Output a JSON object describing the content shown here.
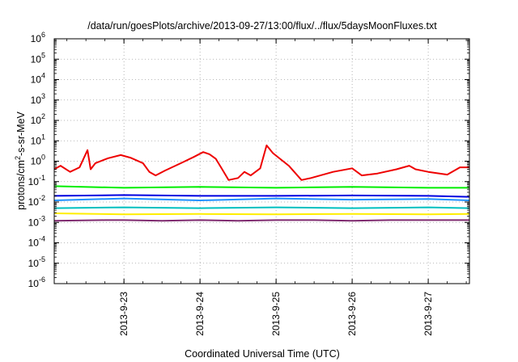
{
  "chart_data": {
    "type": "line",
    "title": "/data/run/goesPlots/archive/2013-09-27/13:00/flux/../flux/5daysMoonFluxes.txt",
    "xlabel": "Coordinated Universal Time (UTC)",
    "ylabel": {
      "base": "protons/cm",
      "sup": "2",
      "rest": "-s-sr-MeV"
    },
    "yscale": "log",
    "ylim": [
      1e-06,
      1000000.0
    ],
    "xlim": [
      "2013-09-22 02:00",
      "2013-09-27 13:00"
    ],
    "x_ticks": [
      "2013-9-23",
      "2013-9-24",
      "2013-9-25",
      "2013-9-26",
      "2013-9-27"
    ],
    "y_ticks": [
      {
        "base": "10",
        "exp": "6"
      },
      {
        "base": "10",
        "exp": "5"
      },
      {
        "base": "10",
        "exp": "4"
      },
      {
        "base": "10",
        "exp": "3"
      },
      {
        "base": "10",
        "exp": "2"
      },
      {
        "base": "10",
        "exp": "1"
      },
      {
        "base": "10",
        "exp": "0"
      },
      {
        "base": "10",
        "exp": "-1"
      },
      {
        "base": "10",
        "exp": "-2"
      },
      {
        "base": "10",
        "exp": "-3"
      },
      {
        "base": "10",
        "exp": "-4"
      },
      {
        "base": "10",
        "exp": "-5"
      },
      {
        "base": "10",
        "exp": "-6"
      }
    ],
    "grid": true,
    "series": [
      {
        "color": "#7f2a6f",
        "values": [
          [
            "2013-09-22 02:00",
            0.0012
          ],
          [
            "2013-09-22 18:00",
            0.0013
          ],
          [
            "2013-09-23 00:00",
            0.0013
          ],
          [
            "2013-09-23 12:00",
            0.0012
          ],
          [
            "2013-09-24 00:00",
            0.0013
          ],
          [
            "2013-09-24 12:00",
            0.0012
          ],
          [
            "2013-09-25 00:00",
            0.0013
          ],
          [
            "2013-09-25 12:00",
            0.0013
          ],
          [
            "2013-09-26 00:00",
            0.0012
          ],
          [
            "2013-09-26 12:00",
            0.0013
          ],
          [
            "2013-09-27 00:00",
            0.0013
          ],
          [
            "2013-09-27 13:00",
            0.0013
          ]
        ]
      },
      {
        "color": "#ffee00",
        "values": [
          [
            "2013-09-22 02:00",
            0.0028
          ],
          [
            "2013-09-23 00:00",
            0.0025
          ],
          [
            "2013-09-24 00:00",
            0.0026
          ],
          [
            "2013-09-25 00:00",
            0.0025
          ],
          [
            "2013-09-26 00:00",
            0.0026
          ],
          [
            "2013-09-27 00:00",
            0.0025
          ],
          [
            "2013-09-27 13:00",
            0.0026
          ]
        ]
      },
      {
        "color": "#00c0c0",
        "values": [
          [
            "2013-09-22 02:00",
            0.005
          ],
          [
            "2013-09-23 00:00",
            0.0055
          ],
          [
            "2013-09-24 00:00",
            0.005
          ],
          [
            "2013-09-25 00:00",
            0.0055
          ],
          [
            "2013-09-26 00:00",
            0.005
          ],
          [
            "2013-09-27 00:00",
            0.0055
          ],
          [
            "2013-09-27 13:00",
            0.005
          ]
        ]
      },
      {
        "color": "#1e90ff",
        "values": [
          [
            "2013-09-22 02:00",
            0.012
          ],
          [
            "2013-09-23 00:00",
            0.015
          ],
          [
            "2013-09-24 00:00",
            0.012
          ],
          [
            "2013-09-25 00:00",
            0.015
          ],
          [
            "2013-09-26 00:00",
            0.013
          ],
          [
            "2013-09-27 00:00",
            0.014
          ],
          [
            "2013-09-27 13:00",
            0.012
          ]
        ]
      },
      {
        "color": "#0000e0",
        "values": [
          [
            "2013-09-22 02:00",
            0.02
          ],
          [
            "2013-09-23 00:00",
            0.022
          ],
          [
            "2013-09-24 00:00",
            0.02
          ],
          [
            "2013-09-25 00:00",
            0.02
          ],
          [
            "2013-09-26 00:00",
            0.021
          ],
          [
            "2013-09-27 00:00",
            0.02
          ],
          [
            "2013-09-27 13:00",
            0.018
          ]
        ]
      },
      {
        "color": "#00ee00",
        "values": [
          [
            "2013-09-22 02:00",
            0.06
          ],
          [
            "2013-09-23 00:00",
            0.05
          ],
          [
            "2013-09-24 00:00",
            0.055
          ],
          [
            "2013-09-25 00:00",
            0.05
          ],
          [
            "2013-09-26 00:00",
            0.055
          ],
          [
            "2013-09-27 00:00",
            0.05
          ],
          [
            "2013-09-27 13:00",
            0.05
          ]
        ]
      },
      {
        "color": "#ee0000",
        "values": [
          [
            "2013-09-22 02:00",
            0.4
          ],
          [
            "2013-09-22 04:00",
            0.6
          ],
          [
            "2013-09-22 07:00",
            0.3
          ],
          [
            "2013-09-22 10:00",
            0.5
          ],
          [
            "2013-09-22 12:30",
            3.5
          ],
          [
            "2013-09-22 13:30",
            0.4
          ],
          [
            "2013-09-22 15:00",
            0.8
          ],
          [
            "2013-09-22 19:00",
            1.4
          ],
          [
            "2013-09-22 23:00",
            2.0
          ],
          [
            "2013-09-23 02:00",
            1.5
          ],
          [
            "2013-09-23 06:00",
            0.8
          ],
          [
            "2013-09-23 08:00",
            0.3
          ],
          [
            "2013-09-23 10:00",
            0.2
          ],
          [
            "2013-09-23 13:00",
            0.35
          ],
          [
            "2013-09-23 18:00",
            0.8
          ],
          [
            "2013-09-23 22:00",
            1.6
          ],
          [
            "2013-09-24 01:00",
            2.8
          ],
          [
            "2013-09-24 03:00",
            2.2
          ],
          [
            "2013-09-24 05:00",
            1.3
          ],
          [
            "2013-09-24 07:00",
            0.4
          ],
          [
            "2013-09-24 09:00",
            0.12
          ],
          [
            "2013-09-24 12:00",
            0.15
          ],
          [
            "2013-09-24 14:00",
            0.3
          ],
          [
            "2013-09-24 16:00",
            0.2
          ],
          [
            "2013-09-24 19:00",
            0.45
          ],
          [
            "2013-09-24 21:00",
            6.0
          ],
          [
            "2013-09-24 23:00",
            2.5
          ],
          [
            "2013-09-25 04:00",
            0.6
          ],
          [
            "2013-09-25 08:00",
            0.12
          ],
          [
            "2013-09-25 11:00",
            0.15
          ],
          [
            "2013-09-25 18:00",
            0.3
          ],
          [
            "2013-09-26 00:00",
            0.45
          ],
          [
            "2013-09-26 03:00",
            0.2
          ],
          [
            "2013-09-26 08:00",
            0.25
          ],
          [
            "2013-09-26 14:00",
            0.4
          ],
          [
            "2013-09-26 18:00",
            0.6
          ],
          [
            "2013-09-26 20:00",
            0.4
          ],
          [
            "2013-09-27 00:00",
            0.3
          ],
          [
            "2013-09-27 06:00",
            0.22
          ],
          [
            "2013-09-27 10:00",
            0.5
          ],
          [
            "2013-09-27 13:00",
            0.5
          ]
        ]
      }
    ]
  }
}
